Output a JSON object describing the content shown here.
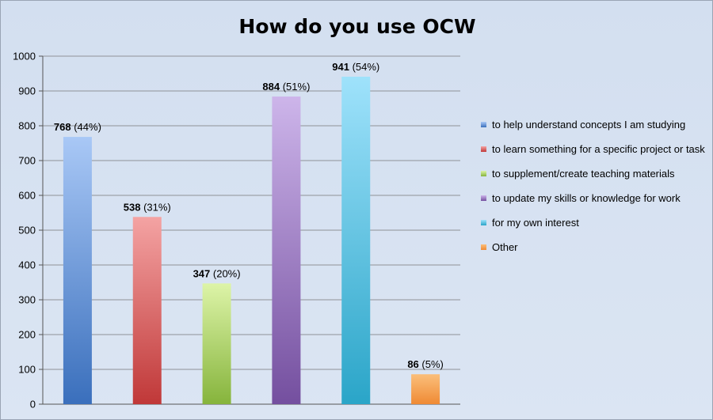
{
  "chart_data": {
    "type": "bar",
    "title": "How do you use OCW",
    "ylim": [
      0,
      1000
    ],
    "yticks": [
      0,
      100,
      200,
      300,
      400,
      500,
      600,
      700,
      800,
      900,
      1000
    ],
    "grid": true,
    "legend_position": "right",
    "categories": [
      "to help understand concepts I am studying",
      "to learn something for a specific project or task",
      "to supplement/create teaching materials",
      "to update my skills or knowledge for work",
      "for my own interest",
      "Other"
    ],
    "values": [
      768,
      538,
      347,
      884,
      941,
      86
    ],
    "percent_labels": [
      "(44%)",
      "(31%)",
      "(20%)",
      "(51%)",
      "(54%)",
      "(5%)"
    ],
    "colors": [
      "#5a8fd6",
      "#d95a5a",
      "#a8cf5c",
      "#9b7bc4",
      "#4fc0e0",
      "#f29a4a"
    ],
    "gradients": [
      [
        "#a9c8f6",
        "#3a6fbc"
      ],
      [
        "#f4a3a3",
        "#c03838"
      ],
      [
        "#ddf4a8",
        "#86b43c"
      ],
      [
        "#cdb5ea",
        "#744f9f"
      ],
      [
        "#9fe2fb",
        "#2aa5c8"
      ],
      [
        "#fbbf7b",
        "#ef8a34"
      ]
    ]
  }
}
